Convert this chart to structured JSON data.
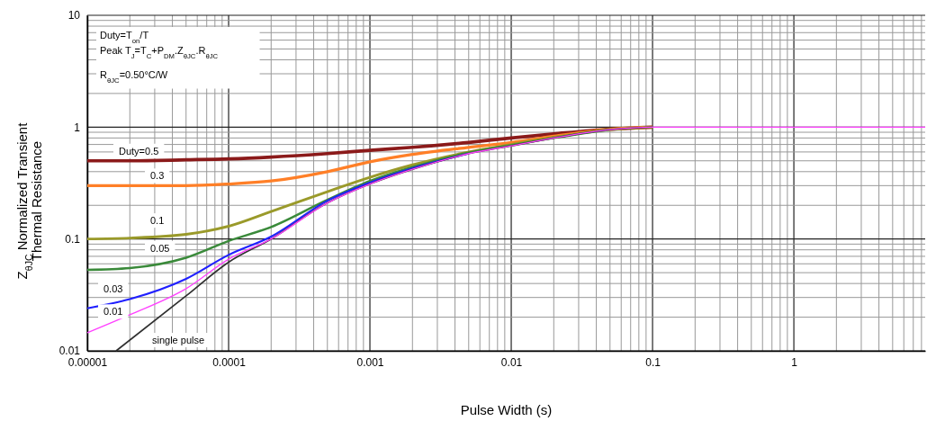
{
  "chart_data": {
    "type": "line",
    "xlabel": "Pulse Width (s)",
    "ylabel": "Z$_{θJC}$ Normalized Transient\nThermal Resistance",
    "log": "xy",
    "grid": true,
    "legend": false,
    "xlim": [
      1e-05,
      8.5
    ],
    "ylim": [
      0.01,
      10
    ],
    "xticks": [
      {
        "value": 1e-05,
        "label": "0.00001"
      },
      {
        "value": 0.0001,
        "label": "0.0001"
      },
      {
        "value": 0.001,
        "label": "0.001"
      },
      {
        "value": 0.01,
        "label": "0.01"
      },
      {
        "value": 0.1,
        "label": "0.1"
      },
      {
        "value": 1,
        "label": "1"
      }
    ],
    "yticks": [
      0.01,
      0.1,
      1,
      10
    ],
    "x": [
      1e-05,
      2e-05,
      5e-05,
      0.0001,
      0.0002,
      0.0005,
      0.001,
      0.002,
      0.005,
      0.01,
      0.02,
      0.05,
      0.1,
      1,
      8.5
    ],
    "annotations": [
      "Duty=T$_{on}$/T",
      "Peak T$_{J}$=T$_{C}$+P$_{DM}$.Z$_{θJC}$.R$_{θJC}$",
      "R$_{θJC}$=0.50°C/W"
    ],
    "series": [
      {
        "name": "Duty=0.5",
        "color": "#8b1a1a",
        "values": [
          0.5,
          0.5,
          0.51,
          0.52,
          0.54,
          0.58,
          0.62,
          0.66,
          0.73,
          0.8,
          0.87,
          0.96,
          1,
          null,
          null
        ]
      },
      {
        "name": "0.3",
        "color": "#ff7f27",
        "values": [
          0.3,
          0.3,
          0.3,
          0.31,
          0.33,
          0.4,
          0.49,
          0.57,
          0.66,
          0.73,
          0.83,
          0.96,
          1,
          null,
          null
        ]
      },
      {
        "name": "0.1",
        "color": "#9a9a2a",
        "values": [
          0.1,
          0.102,
          0.11,
          0.13,
          0.176,
          0.265,
          0.356,
          0.46,
          0.6,
          0.7,
          0.81,
          0.95,
          1,
          null,
          null
        ]
      },
      {
        "name": "0.05",
        "color": "#3a8a3a",
        "values": [
          0.053,
          0.055,
          0.068,
          0.096,
          0.128,
          0.224,
          0.33,
          0.44,
          0.59,
          0.69,
          0.8,
          0.95,
          null,
          null,
          null
        ]
      },
      {
        "name": "0.03",
        "color": "#2020ff",
        "values": [
          0.024,
          0.029,
          0.044,
          0.072,
          0.105,
          0.22,
          0.32,
          0.43,
          0.58,
          null,
          null,
          null,
          null,
          null,
          null
        ]
      },
      {
        "name": "single pulse",
        "color": "#303030",
        "x": [
          1.6e-05,
          5e-05,
          0.0001,
          0.0002,
          0.0005,
          0.001,
          0.002,
          0.005,
          0.01,
          0.02,
          0.05,
          0.1
        ],
        "values": [
          0.01,
          0.031,
          0.062,
          0.1,
          0.21,
          0.31,
          0.42,
          0.58,
          0.68,
          0.8,
          0.95,
          1
        ]
      },
      {
        "name": "0.01",
        "color": "#ff40ff",
        "values": [
          0.0145,
          0.021,
          0.036,
          0.066,
          0.1,
          0.21,
          0.31,
          0.42,
          0.58,
          0.68,
          0.8,
          0.95,
          1,
          1,
          1
        ]
      }
    ]
  }
}
